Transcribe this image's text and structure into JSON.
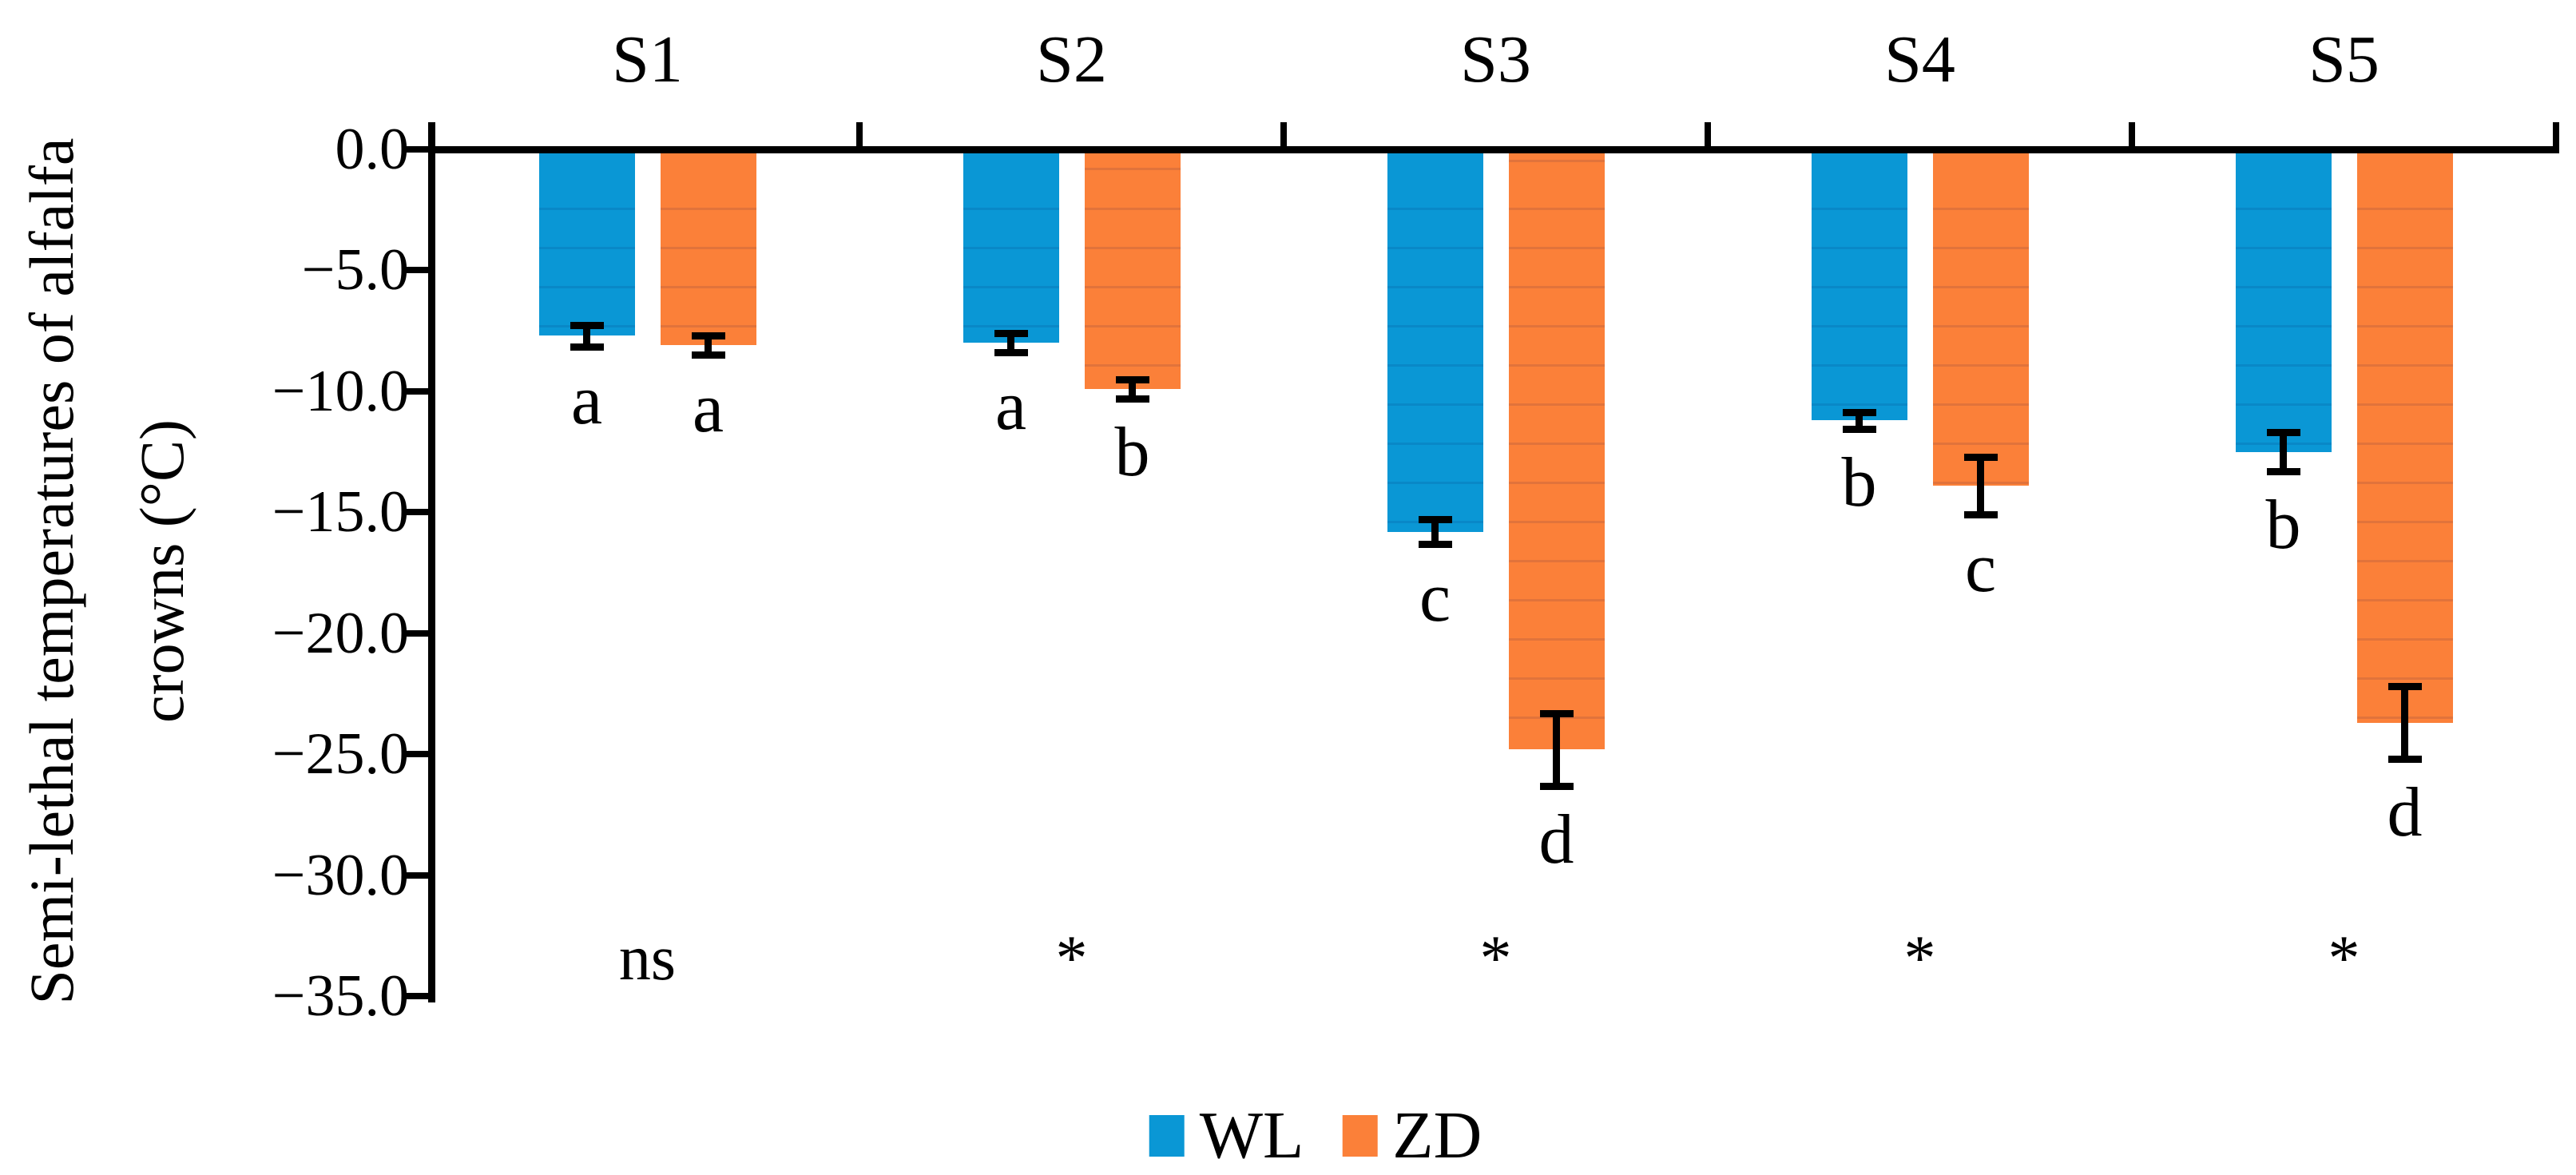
{
  "figure": {
    "background": "#ffffff",
    "y_axis_title_line1": "Semi-lethal temperatures of alfalfa",
    "y_axis_title_line2": "crowns (°C)"
  },
  "legend": [
    {
      "label": "WL",
      "color": "#0A97D5"
    },
    {
      "label": "ZD",
      "color": "#FB8039"
    }
  ],
  "chart_data": {
    "type": "bar",
    "title": "",
    "xlabel": "",
    "ylabel": "Semi-lethal temperatures of alfalfa crowns (°C)",
    "categories": [
      "S1",
      "S2",
      "S3",
      "S4",
      "S5"
    ],
    "series": [
      {
        "name": "WL",
        "color": "#0A97D5",
        "values": [
          -7.7,
          -8.0,
          -15.8,
          -11.2,
          -12.5
        ],
        "errors": [
          0.45,
          0.4,
          0.5,
          0.35,
          0.8
        ],
        "letters": [
          "a",
          "a",
          "c",
          "b",
          "b"
        ]
      },
      {
        "name": "ZD",
        "color": "#FB8039",
        "values": [
          -8.1,
          -9.9,
          -24.8,
          -13.9,
          -23.7
        ],
        "errors": [
          0.4,
          0.4,
          1.5,
          1.2,
          1.5
        ],
        "letters": [
          "a",
          "b",
          "d",
          "c",
          "d"
        ]
      }
    ],
    "significance_per_category": [
      "ns",
      "*",
      "*",
      "*",
      "*"
    ],
    "y_ticks": [
      0.0,
      -5.0,
      -10.0,
      -15.0,
      -20.0,
      -25.0,
      -30.0,
      -35.0
    ],
    "y_tick_labels": [
      "0.0",
      "−5.0",
      "−10.0",
      "−15.0",
      "−20.0",
      "−25.0",
      "−30.0",
      "−35.0"
    ],
    "ylim": [
      0,
      -35
    ],
    "grid": false,
    "legend_position": "bottom",
    "error_bar_direction": "both",
    "bar_direction": "downward"
  }
}
